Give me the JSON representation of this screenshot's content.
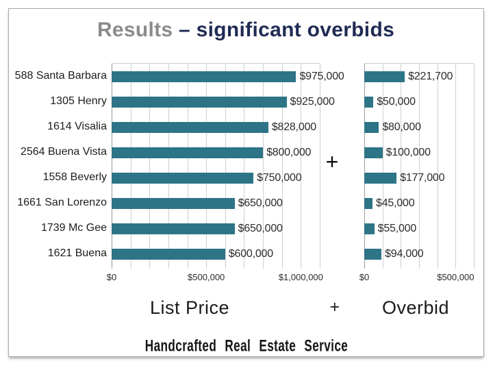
{
  "slide": {
    "title": {
      "prefix": "Results ",
      "rest": "– significant overbids",
      "prefix_color": "#8b8b8d",
      "rest_color": "#1f2b54"
    },
    "mid_plus": "+",
    "axis_titles": {
      "left": "List Price",
      "plus": "+",
      "right": "Overbid"
    },
    "logo_text": "Handcrafted Real Estate Service"
  },
  "chart_data": [
    {
      "type": "bar",
      "orientation": "horizontal",
      "name": "List Price",
      "categories": [
        "588 Santa Barbara",
        "1305 Henry",
        "1614 Visalia",
        "2564 Buena Vista",
        "1558 Beverly",
        "1661 San Lorenzo",
        "1739 Mc Gee",
        "1621 Buena"
      ],
      "values": [
        975000,
        925000,
        828000,
        800000,
        750000,
        650000,
        650000,
        600000
      ],
      "value_labels": [
        "$975,000",
        "$925,000",
        "$828,000",
        "$800,000",
        "$750,000",
        "$650,000",
        "$650,000",
        "$600,000"
      ],
      "xlim": [
        0,
        1100000
      ],
      "gridline_interval": 100000,
      "grid_on": true,
      "x_ticks": [
        {
          "value": 0,
          "label": "$0"
        },
        {
          "value": 500000,
          "label": "$500,000"
        },
        {
          "value": 1000000,
          "label": "$1,000,000"
        }
      ],
      "bar_color": "#2e7487"
    },
    {
      "type": "bar",
      "orientation": "horizontal",
      "name": "Overbid",
      "categories": [
        "588 Santa Barbara",
        "1305 Henry",
        "1614 Visalia",
        "2564 Buena Vista",
        "1558 Beverly",
        "1661 San Lorenzo",
        "1739 Mc Gee",
        "1621 Buena"
      ],
      "values": [
        221700,
        50000,
        80000,
        100000,
        177000,
        45000,
        55000,
        94000
      ],
      "value_labels": [
        "$221,700",
        "$50,000",
        "$80,000",
        "$100,000",
        "$177,000",
        "$45,000",
        "$55,000",
        "$94,000"
      ],
      "xlim": [
        0,
        600000
      ],
      "gridline_interval": 100000,
      "grid_on": true,
      "x_ticks": [
        {
          "value": 0,
          "label": "$0"
        },
        {
          "value": 500000,
          "label": "$500,000"
        }
      ],
      "bar_color": "#2e7487"
    }
  ]
}
